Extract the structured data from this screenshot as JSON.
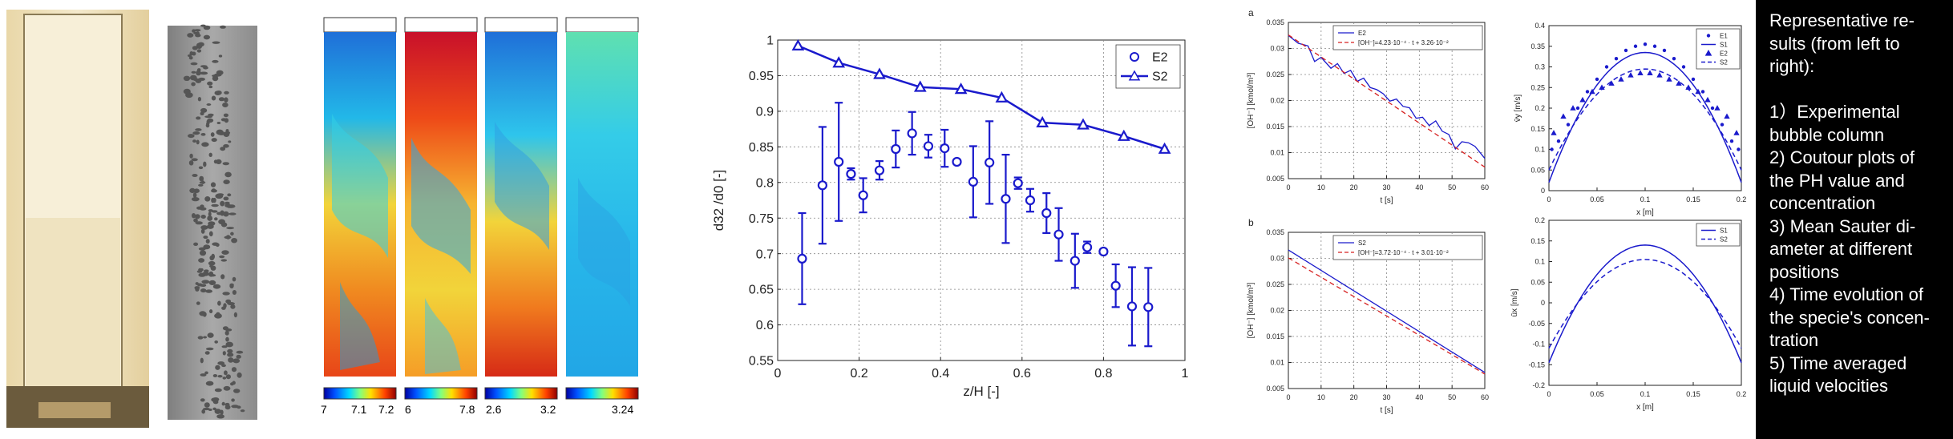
{
  "caption": {
    "text": "Representative re-\nsults (from left to\nright):\n\n1）Experimental\nbubble column\n2) Coutour plots of\nthe PH value and\nconcentration\n3) Mean Sauter di-\nameter at different\npositions\n4) Time evolution of\nthe specie's concen-\ntration\n5) Time averaged\nliquid velocities"
  },
  "colorbars": [
    {
      "ticks": [
        "7",
        "7.1",
        "7.2"
      ]
    },
    {
      "ticks": [
        "6",
        "7.8"
      ]
    },
    {
      "ticks": [
        "2.6",
        "3.2"
      ]
    },
    {
      "ticks": [
        "3.24"
      ]
    }
  ],
  "colors": {
    "series_blue": "#1a1acc",
    "fit_red": "#d62020"
  },
  "chart_data": [
    {
      "type": "scatter",
      "xlabel": "z/H [-]",
      "ylabel": "d32 /d0 [-]",
      "xlim": [
        0,
        1
      ],
      "ylim": [
        0.55,
        1
      ],
      "xticks": [
        "0",
        "0.2",
        "0.4",
        "0.6",
        "0.8",
        "1"
      ],
      "yticks": [
        "0.55",
        "0.6",
        "0.65",
        "0.7",
        "0.75",
        "0.8",
        "0.85",
        "0.9",
        "0.95",
        "1"
      ],
      "grid": true,
      "legend": "top-right",
      "series": [
        {
          "name": "E2",
          "marker": "circle",
          "x": [
            0.06,
            0.11,
            0.15,
            0.18,
            0.21,
            0.25,
            0.29,
            0.33,
            0.37,
            0.41,
            0.44,
            0.48,
            0.52,
            0.56,
            0.59,
            0.62,
            0.66,
            0.69,
            0.73,
            0.76,
            0.8,
            0.83,
            0.87,
            0.91
          ],
          "y": [
            0.693,
            0.796,
            0.829,
            0.812,
            0.782,
            0.817,
            0.847,
            0.869,
            0.851,
            0.848,
            0.829,
            0.801,
            0.828,
            0.777,
            0.799,
            0.775,
            0.757,
            0.727,
            0.69,
            0.709,
            0.703,
            0.655,
            0.626,
            0.625
          ],
          "err": [
            0.064,
            0.082,
            0.083,
            0.008,
            0.024,
            0.013,
            0.026,
            0.03,
            0.016,
            0.026,
            0.003,
            0.05,
            0.058,
            0.062,
            0.008,
            0.016,
            0.028,
            0.037,
            0.038,
            0.008,
            0.003,
            0.03,
            0.055,
            0.055
          ]
        },
        {
          "name": "S2",
          "marker": "triangle",
          "x": [
            0.05,
            0.15,
            0.25,
            0.35,
            0.45,
            0.55,
            0.65,
            0.75,
            0.85,
            0.95
          ],
          "y": [
            0.992,
            0.968,
            0.952,
            0.934,
            0.931,
            0.919,
            0.884,
            0.881,
            0.865,
            0.847
          ]
        }
      ]
    },
    {
      "type": "line",
      "panel_label": "a",
      "xlabel": "t [s]",
      "ylabel": "[OH⁻] [kmol/m³]",
      "xlim": [
        0,
        60
      ],
      "ylim": [
        0.005,
        0.035
      ],
      "xticks": [
        "0",
        "10",
        "20",
        "30",
        "40",
        "50",
        "60"
      ],
      "yticks": [
        "0.005",
        "0.01",
        "0.015",
        "0.02",
        "0.025",
        "0.03",
        "0.035"
      ],
      "legend": "top-right",
      "series": [
        {
          "name": "E2",
          "style": "solid",
          "x": [
            0,
            3,
            6,
            8,
            10,
            13,
            15,
            17,
            19,
            21,
            23,
            25,
            27,
            29,
            31,
            33,
            35,
            37,
            39,
            41,
            43,
            45,
            47,
            49,
            51,
            53,
            55,
            57,
            60
          ],
          "y": [
            0.0325,
            0.031,
            0.0305,
            0.0275,
            0.0283,
            0.0262,
            0.0271,
            0.0252,
            0.0258,
            0.0237,
            0.0243,
            0.0225,
            0.0221,
            0.0213,
            0.0199,
            0.0203,
            0.0189,
            0.0186,
            0.0166,
            0.0168,
            0.0152,
            0.0161,
            0.0141,
            0.0135,
            0.0107,
            0.0121,
            0.0119,
            0.0112,
            0.0089
          ]
        },
        {
          "name": "[OH⁻]=4.23·10⁻⁴ · t + 3.26·10⁻²",
          "style": "dashed",
          "x": [
            0,
            60
          ],
          "y": [
            0.0326,
            0.00722
          ]
        }
      ]
    },
    {
      "type": "line",
      "panel_label": "b",
      "xlabel": "t [s]",
      "ylabel": "[OH⁻] [kmol/m³]",
      "xlim": [
        0,
        60
      ],
      "ylim": [
        0.005,
        0.035
      ],
      "xticks": [
        "0",
        "10",
        "20",
        "30",
        "40",
        "50",
        "60"
      ],
      "yticks": [
        "0.005",
        "0.01",
        "0.015",
        "0.02",
        "0.025",
        "0.03",
        "0.035"
      ],
      "legend": "top-right",
      "series": [
        {
          "name": "S2",
          "style": "solid",
          "x": [
            0,
            60
          ],
          "y": [
            0.0316,
            0.0081
          ]
        },
        {
          "name": "[OH⁻]=3.72·10⁻⁴ · t + 3.01·10⁻²",
          "style": "dashed",
          "x": [
            0,
            60
          ],
          "y": [
            0.0301,
            0.00778
          ]
        }
      ]
    },
    {
      "type": "line",
      "xlabel": "x [m]",
      "ylabel": "v̄y [m/s]",
      "xlim": [
        0,
        0.2
      ],
      "ylim": [
        0,
        0.4
      ],
      "xticks": [
        "0",
        "0.05",
        "0.1",
        "0.15",
        "0.2"
      ],
      "yticks": [
        "0",
        "0.05",
        "0.1",
        "0.15",
        "0.2",
        "0.25",
        "0.3",
        "0.35",
        "0.4"
      ],
      "legend": "top-right",
      "series": [
        {
          "name": "E1",
          "marker": "dot",
          "x": [
            0.003,
            0.01,
            0.02,
            0.03,
            0.04,
            0.05,
            0.06,
            0.07,
            0.08,
            0.09,
            0.1,
            0.11,
            0.12,
            0.13,
            0.14,
            0.15,
            0.16,
            0.17,
            0.18,
            0.19,
            0.197
          ],
          "y": [
            0.1,
            0.12,
            0.16,
            0.2,
            0.24,
            0.27,
            0.3,
            0.32,
            0.34,
            0.35,
            0.355,
            0.35,
            0.34,
            0.32,
            0.3,
            0.27,
            0.24,
            0.2,
            0.16,
            0.12,
            0.1
          ]
        },
        {
          "name": "S1",
          "style": "solid",
          "x": [
            0,
            0.1,
            0.2
          ],
          "y": [
            0.02,
            0.335,
            0.02
          ]
        },
        {
          "name": "E2",
          "marker": "triangle",
          "x": [
            0.005,
            0.015,
            0.025,
            0.035,
            0.045,
            0.055,
            0.065,
            0.075,
            0.085,
            0.095,
            0.105,
            0.115,
            0.125,
            0.135,
            0.145,
            0.155,
            0.165,
            0.175,
            0.185,
            0.195
          ],
          "y": [
            0.14,
            0.18,
            0.2,
            0.22,
            0.24,
            0.25,
            0.26,
            0.27,
            0.28,
            0.285,
            0.285,
            0.28,
            0.27,
            0.26,
            0.25,
            0.24,
            0.22,
            0.2,
            0.18,
            0.14
          ]
        },
        {
          "name": "S2",
          "style": "dashed",
          "x": [
            0,
            0.1,
            0.2
          ],
          "y": [
            0.05,
            0.295,
            0.05
          ]
        }
      ]
    },
    {
      "type": "line",
      "xlabel": "x [m]",
      "ylabel": "ūx [m/s]",
      "xlim": [
        0,
        0.2
      ],
      "ylim": [
        -0.2,
        0.2
      ],
      "xticks": [
        "0",
        "0.05",
        "0.1",
        "0.15",
        "0.2"
      ],
      "yticks": [
        "-0.2",
        "-0.15",
        "-0.1",
        "-0.05",
        "0",
        "0.05",
        "0.1",
        "0.15",
        "0.2"
      ],
      "legend": "top-right",
      "series": [
        {
          "name": "S1",
          "style": "solid",
          "x": [
            0,
            0.1,
            0.2
          ],
          "y": [
            -0.145,
            0.14,
            -0.145
          ]
        },
        {
          "name": "S2",
          "style": "dashed",
          "x": [
            0,
            0.1,
            0.2
          ],
          "y": [
            -0.11,
            0.105,
            -0.11
          ]
        }
      ]
    }
  ]
}
